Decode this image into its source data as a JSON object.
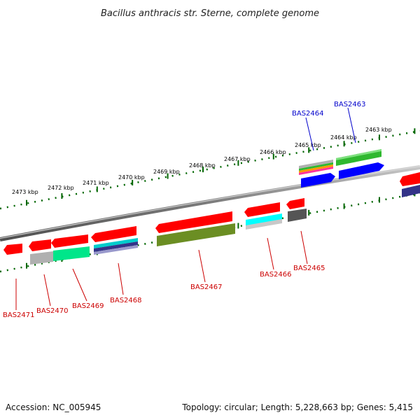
{
  "title": "Bacillus anthracis str. Sterne, complete genome",
  "footer": {
    "accession": "Accession: NC_005945",
    "summary": "Topology: circular; Length: 5,228,663 bp; Genes: 5,415"
  },
  "kbp_labels": [
    "2473 kbp",
    "2472 kbp",
    "2471 kbp",
    "2470 kbp",
    "2469 kbp",
    "2468 kbp",
    "2467 kbp",
    "2466 kbp",
    "2465 kbp",
    "2464 kbp",
    "2463 kbp"
  ],
  "gene_labels": [
    {
      "text": "BAS2471",
      "color": "#cc0000"
    },
    {
      "text": "BAS2470",
      "color": "#cc0000"
    },
    {
      "text": "BAS2469",
      "color": "#cc0000"
    },
    {
      "text": "BAS2468",
      "color": "#cc0000"
    },
    {
      "text": "BAS2467",
      "color": "#cc0000"
    },
    {
      "text": "BAS2466",
      "color": "#cc0000"
    },
    {
      "text": "BAS2465",
      "color": "#cc0000"
    },
    {
      "text": "BAS2464",
      "color": "#0000cc"
    },
    {
      "text": "BAS2463",
      "color": "#0000cc"
    }
  ],
  "colors": {
    "gene_red": "#ff0000",
    "gene_blue": "#0000ff",
    "gene_green": "#2fb82f",
    "gene_olive": "#6b8e23",
    "gene_cyan": "#00ffff",
    "gene_teal": "#00e68a",
    "gene_gray": "#b0b0b0",
    "gene_darkgray": "#555555",
    "gene_navy": "#333388",
    "tick_green": "#006600",
    "backbone": "#808080"
  }
}
